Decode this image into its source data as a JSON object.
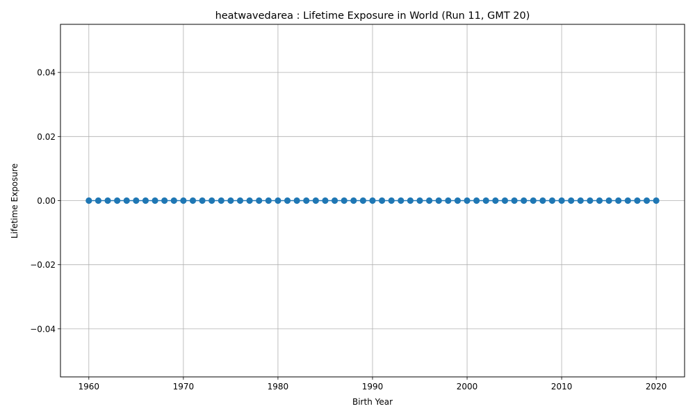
{
  "chart_data": {
    "type": "line",
    "title": "heatwavedarea : Lifetime Exposure in World (Run 11, GMT 20)",
    "xlabel": "Birth Year",
    "ylabel": "Lifetime Exposure",
    "xlim": [
      1957,
      2023
    ],
    "ylim": [
      -0.055,
      0.055
    ],
    "xticks": [
      1960,
      1970,
      1980,
      1990,
      2000,
      2010,
      2020
    ],
    "xtick_labels": [
      "1960",
      "1970",
      "1980",
      "1990",
      "2000",
      "2010",
      "2020"
    ],
    "yticks": [
      -0.04,
      -0.02,
      0.0,
      0.02,
      0.04
    ],
    "ytick_labels": [
      "−0.04",
      "−0.02",
      "0.00",
      "0.02",
      "0.04"
    ],
    "grid": true,
    "legend": false,
    "series": [
      {
        "color": "#1f77b4",
        "marker": "circle",
        "x": [
          1960,
          1961,
          1962,
          1963,
          1964,
          1965,
          1966,
          1967,
          1968,
          1969,
          1970,
          1971,
          1972,
          1973,
          1974,
          1975,
          1976,
          1977,
          1978,
          1979,
          1980,
          1981,
          1982,
          1983,
          1984,
          1985,
          1986,
          1987,
          1988,
          1989,
          1990,
          1991,
          1992,
          1993,
          1994,
          1995,
          1996,
          1997,
          1998,
          1999,
          2000,
          2001,
          2002,
          2003,
          2004,
          2005,
          2006,
          2007,
          2008,
          2009,
          2010,
          2011,
          2012,
          2013,
          2014,
          2015,
          2016,
          2017,
          2018,
          2019,
          2020
        ],
        "y": [
          0,
          0,
          0,
          0,
          0,
          0,
          0,
          0,
          0,
          0,
          0,
          0,
          0,
          0,
          0,
          0,
          0,
          0,
          0,
          0,
          0,
          0,
          0,
          0,
          0,
          0,
          0,
          0,
          0,
          0,
          0,
          0,
          0,
          0,
          0,
          0,
          0,
          0,
          0,
          0,
          0,
          0,
          0,
          0,
          0,
          0,
          0,
          0,
          0,
          0,
          0,
          0,
          0,
          0,
          0,
          0,
          0,
          0,
          0,
          0,
          0
        ]
      }
    ]
  },
  "colors": {
    "series": "#1f77b4",
    "grid": "#b0b0b0",
    "axes": "#000000"
  }
}
